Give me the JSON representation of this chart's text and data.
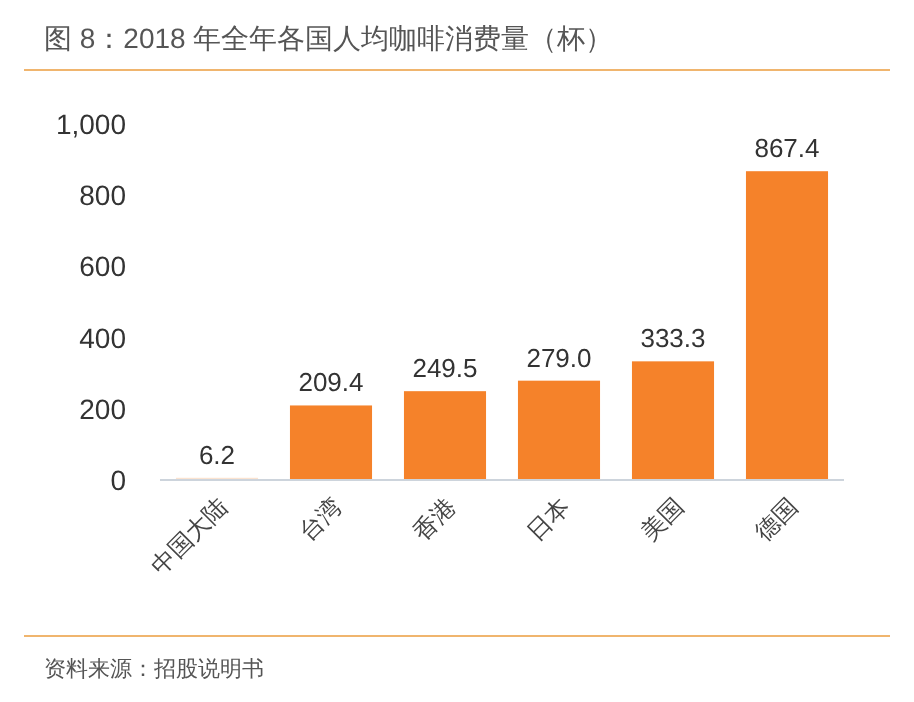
{
  "chart_data": {
    "type": "bar",
    "title": "图 8：2018 年全年各国人均咖啡消费量（杯）",
    "categories": [
      "中国大陆",
      "台湾",
      "香港",
      "日本",
      "美国",
      "德国"
    ],
    "values": [
      6.2,
      209.4,
      249.5,
      279.0,
      333.3,
      867.4
    ],
    "value_labels": [
      "6.2",
      "209.4",
      "249.5",
      "279.0",
      "333.3",
      "867.4"
    ],
    "colors": [
      "#fbe3d0",
      "#f5822a",
      "#f5822a",
      "#f5822a",
      "#f5822a",
      "#f5822a"
    ],
    "ylim": [
      0,
      1000
    ],
    "yticks": [
      0,
      200,
      400,
      600,
      800,
      {
        "value": 1000,
        "label": "1,000"
      }
    ],
    "annotations": [
      "资料来源：招股说明书"
    ]
  }
}
